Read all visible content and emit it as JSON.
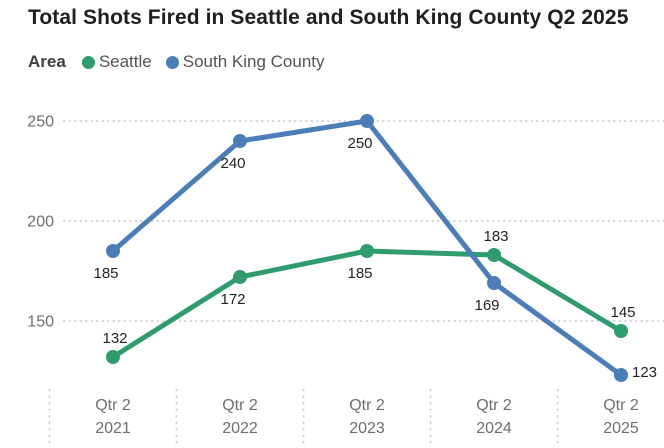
{
  "title": "Total Shots Fired in Seattle and South King County Q2 2025",
  "legend": {
    "label": "Area",
    "items": [
      {
        "name": "Seattle",
        "color": "#2e9c6c"
      },
      {
        "name": "South King County",
        "color": "#4b7eb8"
      }
    ]
  },
  "chart_data": {
    "type": "line",
    "title": "Total Shots Fired in Seattle and South King County Q2 2025",
    "categories": [
      [
        "Qtr 2",
        "2021"
      ],
      [
        "Qtr 2",
        "2022"
      ],
      [
        "Qtr 2",
        "2023"
      ],
      [
        "Qtr 2",
        "2024"
      ],
      [
        "Qtr 2",
        "2025"
      ]
    ],
    "series": [
      {
        "name": "Seattle",
        "color": "#2e9c6c",
        "values": [
          132,
          172,
          185,
          183,
          145
        ],
        "label_positions": [
          "above",
          "below",
          "below",
          "above",
          "above"
        ]
      },
      {
        "name": "South King County",
        "color": "#4b7eb8",
        "values": [
          185,
          240,
          250,
          169,
          123
        ],
        "label_positions": [
          "below",
          "below",
          "below",
          "below",
          "right"
        ]
      }
    ],
    "xlabel": "",
    "ylabel": "",
    "y_ticks": [
      150,
      200,
      250
    ],
    "ylim": [
      115,
      265
    ],
    "grid": "dotted-horizontal",
    "legend_position": "top",
    "data_labels": true
  }
}
